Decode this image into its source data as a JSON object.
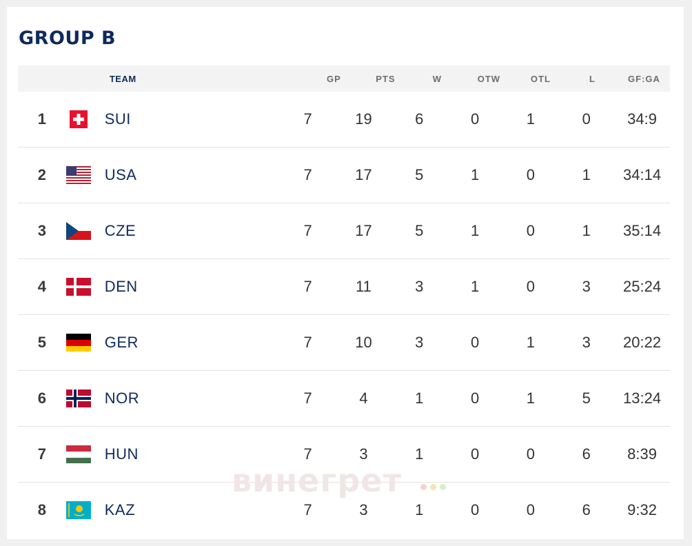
{
  "title": "GROUP B",
  "columns": {
    "team": "TEAM",
    "gp": "GP",
    "pts": "PTS",
    "w": "W",
    "otw": "OTW",
    "otl": "OTL",
    "l": "L",
    "gfga": "GF:GA"
  },
  "rows": [
    {
      "rank": "1",
      "team": "SUI",
      "flag": "switzerland-flag",
      "gp": "7",
      "pts": "19",
      "w": "6",
      "otw": "0",
      "otl": "1",
      "l": "0",
      "gfga": "34:9"
    },
    {
      "rank": "2",
      "team": "USA",
      "flag": "usa-flag",
      "gp": "7",
      "pts": "17",
      "w": "5",
      "otw": "1",
      "otl": "0",
      "l": "1",
      "gfga": "34:14"
    },
    {
      "rank": "3",
      "team": "CZE",
      "flag": "czechia-flag",
      "gp": "7",
      "pts": "17",
      "w": "5",
      "otw": "1",
      "otl": "0",
      "l": "1",
      "gfga": "35:14"
    },
    {
      "rank": "4",
      "team": "DEN",
      "flag": "denmark-flag",
      "gp": "7",
      "pts": "11",
      "w": "3",
      "otw": "1",
      "otl": "0",
      "l": "3",
      "gfga": "25:24"
    },
    {
      "rank": "5",
      "team": "GER",
      "flag": "germany-flag",
      "gp": "7",
      "pts": "10",
      "w": "3",
      "otw": "0",
      "otl": "1",
      "l": "3",
      "gfga": "20:22"
    },
    {
      "rank": "6",
      "team": "NOR",
      "flag": "norway-flag",
      "gp": "7",
      "pts": "4",
      "w": "1",
      "otw": "0",
      "otl": "1",
      "l": "5",
      "gfga": "13:24"
    },
    {
      "rank": "7",
      "team": "HUN",
      "flag": "hungary-flag",
      "gp": "7",
      "pts": "3",
      "w": "1",
      "otw": "0",
      "otl": "0",
      "l": "6",
      "gfga": "8:39"
    },
    {
      "rank": "8",
      "team": "KAZ",
      "flag": "kazakhstan-flag",
      "gp": "7",
      "pts": "3",
      "w": "1",
      "otw": "0",
      "otl": "0",
      "l": "6",
      "gfga": "9:32"
    }
  ],
  "watermark": "винегрет",
  "colors": {
    "title": "#0f2a5c",
    "team_text": "#0f2a5c",
    "header_bg": "#f3f3f3",
    "row_divider": "#e3e3e3"
  }
}
